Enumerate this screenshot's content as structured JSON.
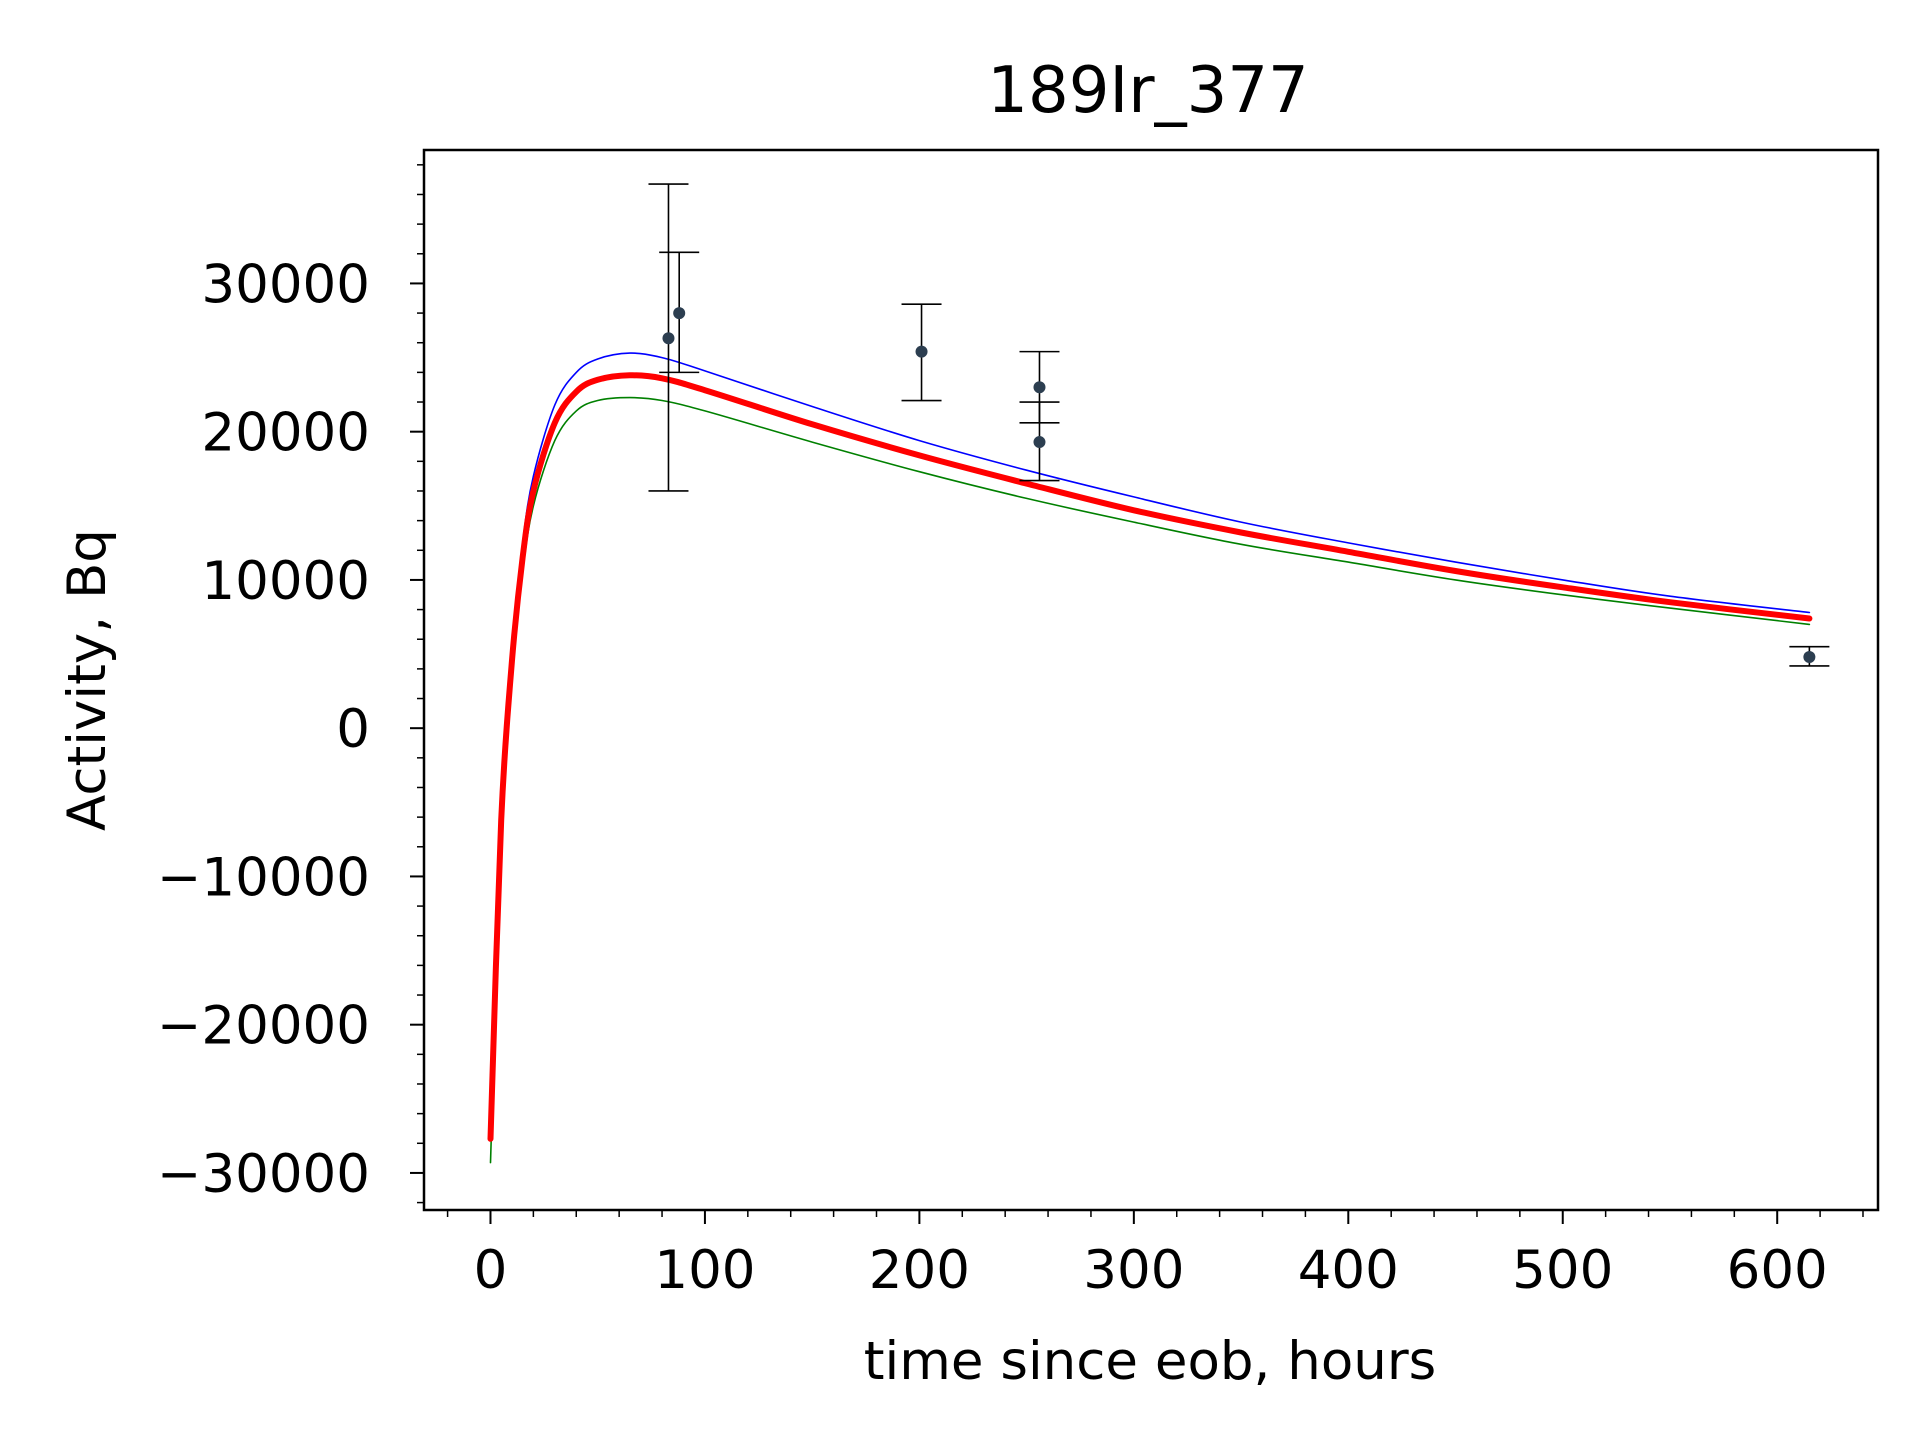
{
  "chart_data": {
    "type": "line",
    "title": "189Ir_377",
    "xlabel": "time since eob, hours",
    "ylabel": "Activity, Bq",
    "xlim": [
      -31,
      647
    ],
    "ylim": [
      -32500,
      39000
    ],
    "xticks": [
      0,
      100,
      200,
      300,
      400,
      500,
      600
    ],
    "xtick_labels": [
      "0",
      "100",
      "200",
      "300",
      "400",
      "500",
      "600"
    ],
    "yticks": [
      -30000,
      -20000,
      -10000,
      0,
      10000,
      20000,
      30000
    ],
    "ytick_labels": [
      "−30000",
      "−20000",
      "−10000",
      "0",
      "10000",
      "20000",
      "30000"
    ],
    "grid": false,
    "legend": null,
    "series": [
      {
        "kind": "line",
        "color": "#0000ff",
        "style": "thin",
        "x": [
          0,
          5,
          10,
          15,
          20,
          30,
          40,
          50,
          65,
          80,
          100,
          150,
          200,
          250,
          300,
          350,
          400,
          450,
          500,
          550,
          615
        ],
        "y": [
          -27000,
          -5000,
          5500,
          12500,
          17000,
          21800,
          24000,
          24900,
          25300,
          25000,
          24100,
          21700,
          19400,
          17400,
          15600,
          13900,
          12500,
          11200,
          10000,
          8900,
          7800
        ]
      },
      {
        "kind": "line",
        "color": "#008000",
        "style": "thin",
        "x": [
          0,
          5,
          10,
          15,
          20,
          30,
          40,
          50,
          65,
          80,
          100,
          150,
          200,
          250,
          300,
          350,
          400,
          450,
          500,
          550,
          615
        ],
        "y": [
          -29300,
          -7500,
          3500,
          10500,
          15000,
          19400,
          21400,
          22100,
          22300,
          22100,
          21400,
          19300,
          17300,
          15500,
          13900,
          12400,
          11200,
          10000,
          9000,
          8100,
          7000
        ]
      },
      {
        "kind": "line",
        "color": "#ff0000",
        "style": "thick",
        "x": [
          0,
          5,
          10,
          15,
          20,
          30,
          40,
          50,
          65,
          80,
          100,
          150,
          200,
          250,
          300,
          350,
          400,
          450,
          500,
          550,
          615
        ],
        "y": [
          -27700,
          -6200,
          4500,
          11500,
          16000,
          20600,
          22700,
          23500,
          23800,
          23600,
          22800,
          20500,
          18400,
          16500,
          14700,
          13200,
          11900,
          10600,
          9500,
          8500,
          7400
        ]
      }
    ],
    "points": [
      {
        "x": 83,
        "y": 26300,
        "yerr_low": 16000,
        "yerr_high": 36700,
        "color": "#2c3e50"
      },
      {
        "x": 88,
        "y": 28000,
        "yerr_low": 24000,
        "yerr_high": 32100,
        "color": "#2c3e50"
      },
      {
        "x": 201,
        "y": 25400,
        "yerr_low": 22100,
        "yerr_high": 28600,
        "color": "#2c3e50"
      },
      {
        "x": 256,
        "y": 23000,
        "yerr_low": 20600,
        "yerr_high": 25400,
        "color": "#2c3e50"
      },
      {
        "x": 256,
        "y": 19300,
        "yerr_low": 16700,
        "yerr_high": 22000,
        "color": "#2c3e50"
      },
      {
        "x": 615,
        "y": 4800,
        "yerr_low": 4200,
        "yerr_high": 5500,
        "color": "#2c3e50"
      }
    ]
  }
}
